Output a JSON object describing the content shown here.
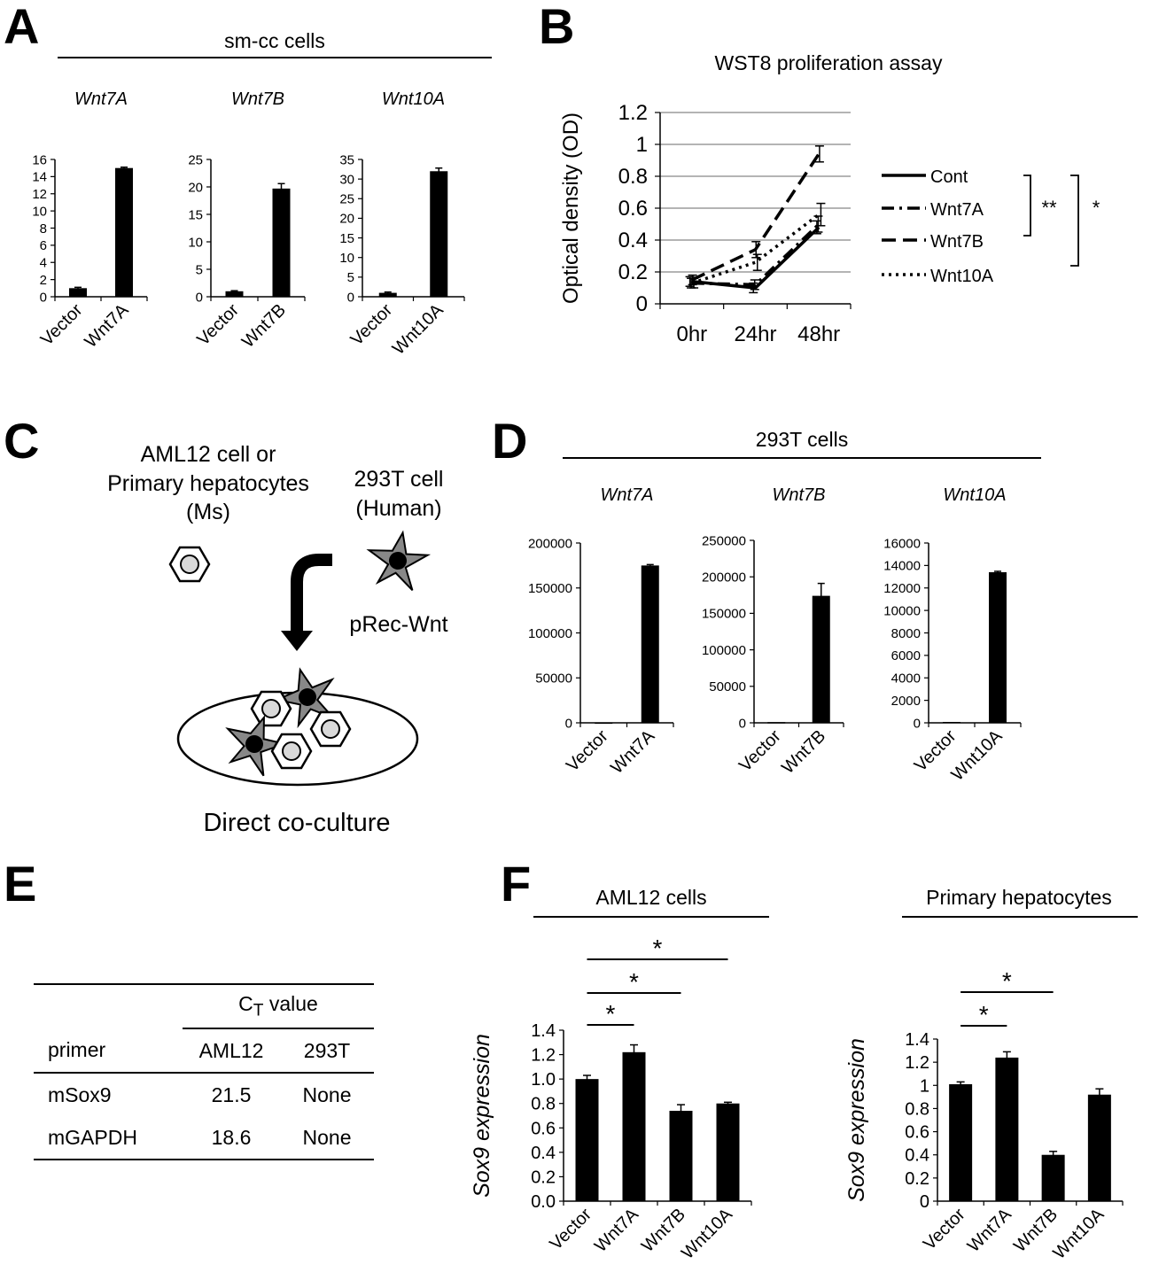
{
  "panels": {
    "A": {
      "label": "A",
      "title": "sm-cc cells"
    },
    "B": {
      "label": "B",
      "title": "WST8 proliferation assay"
    },
    "C": {
      "label": "C",
      "left_cell": "AML12 cell or\nPrimary hepatocytes\n(Ms)",
      "right_cell": "293T cell\n(Human)",
      "vector": "pRec-Wnt",
      "caption": "Direct co-culture"
    },
    "D": {
      "label": "D",
      "title": "293T cells"
    },
    "E": {
      "label": "E"
    },
    "F": {
      "label": "F",
      "title_left": "AML12 cells",
      "title_right": "Primary hepatocytes"
    }
  },
  "table_E": {
    "ct_header": "C",
    "ct_sub": "T",
    "ct_suffix": " value",
    "columns": [
      "primer",
      "AML12",
      "293T"
    ],
    "rows": [
      [
        "mSox9",
        "21.5",
        "None"
      ],
      [
        "mGAPDH",
        "18.6",
        "None"
      ]
    ]
  },
  "chart_data": [
    {
      "id": "A1",
      "type": "bar",
      "title": "Wnt7A",
      "categories": [
        "Vector",
        "Wnt7A"
      ],
      "values": [
        1.0,
        15.0
      ],
      "errors": [
        0.1,
        0.1
      ],
      "ylim": [
        0,
        16
      ],
      "yticks": [
        "0",
        "2",
        "4",
        "6",
        "8",
        "10",
        "12",
        "14",
        "16"
      ]
    },
    {
      "id": "A2",
      "type": "bar",
      "title": "Wnt7B",
      "categories": [
        "Vector",
        "Wnt7B"
      ],
      "values": [
        1.0,
        19.7
      ],
      "errors": [
        0.1,
        0.9
      ],
      "ylim": [
        0,
        25
      ],
      "yticks": [
        "0",
        "5",
        "10",
        "15",
        "20",
        "25"
      ]
    },
    {
      "id": "A3",
      "type": "bar",
      "title": "Wnt10A",
      "categories": [
        "Vector",
        "Wnt10A"
      ],
      "values": [
        1.0,
        32.0
      ],
      "errors": [
        0.2,
        0.8
      ],
      "ylim": [
        0,
        35
      ],
      "yticks": [
        "0",
        "5",
        "10",
        "15",
        "20",
        "25",
        "30",
        "35"
      ]
    },
    {
      "id": "B",
      "type": "line",
      "title": "WST8 proliferation assay",
      "ylabel": "Optical density (OD)",
      "x": [
        "0hr",
        "24hr",
        "48hr"
      ],
      "ylim": [
        0,
        1.2
      ],
      "yticks": [
        "0",
        "0.2",
        "0.4",
        "0.6",
        "0.8",
        "1",
        "1.2"
      ],
      "series": [
        {
          "name": "Cont",
          "values": [
            0.14,
            0.1,
            0.48
          ],
          "errors": [
            0.03,
            0.03,
            0.04
          ],
          "style": "solid"
        },
        {
          "name": "Wnt7A",
          "values": [
            0.13,
            0.12,
            0.5
          ],
          "errors": [
            0.03,
            0.03,
            0.05
          ],
          "style": "dashdot"
        },
        {
          "name": "Wnt7B",
          "values": [
            0.15,
            0.34,
            0.94
          ],
          "errors": [
            0.03,
            0.05,
            0.05
          ],
          "style": "dashed"
        },
        {
          "name": "Wnt10A",
          "values": [
            0.13,
            0.26,
            0.56
          ],
          "errors": [
            0.03,
            0.05,
            0.07
          ],
          "style": "dotted"
        }
      ],
      "significance": [
        "**",
        "*"
      ]
    },
    {
      "id": "D1",
      "type": "bar",
      "title": "Wnt7A",
      "categories": [
        "Vector",
        "Wnt7A"
      ],
      "values": [
        400,
        175000
      ],
      "errors": [
        0,
        1000
      ],
      "ylim": [
        0,
        200000
      ],
      "yticks": [
        "0",
        "50000",
        "100000",
        "150000",
        "200000"
      ]
    },
    {
      "id": "D2",
      "type": "bar",
      "title": "Wnt7B",
      "categories": [
        "Vector",
        "Wnt7B"
      ],
      "values": [
        1000,
        174000
      ],
      "errors": [
        0,
        17000
      ],
      "ylim": [
        0,
        250000
      ],
      "yticks": [
        "0",
        "50000",
        "100000",
        "150000",
        "200000",
        "250000"
      ]
    },
    {
      "id": "D3",
      "type": "bar",
      "title": "Wnt10A",
      "categories": [
        "Vector",
        "Wnt10A"
      ],
      "values": [
        80,
        13400
      ],
      "errors": [
        0,
        80
      ],
      "ylim": [
        0,
        16000
      ],
      "yticks": [
        "0",
        "2000",
        "4000",
        "6000",
        "8000",
        "10000",
        "12000",
        "14000",
        "16000"
      ]
    },
    {
      "id": "F1",
      "type": "bar",
      "title": "AML12 cells",
      "ylabel": "Sox9 expression",
      "categories": [
        "Vector",
        "Wnt7A",
        "Wnt7B",
        "Wnt10A"
      ],
      "values": [
        1.0,
        1.22,
        0.74,
        0.8
      ],
      "errors": [
        0.03,
        0.06,
        0.05,
        0.01
      ],
      "ylim": [
        0,
        1.4
      ],
      "yticks": [
        "0.0",
        "0.2",
        "0.4",
        "0.6",
        "0.8",
        "1.0",
        "1.2",
        "1.4"
      ],
      "significance": [
        "*",
        "*",
        "*"
      ]
    },
    {
      "id": "F2",
      "type": "bar",
      "title": "Primary hepatocytes",
      "ylabel": "Sox9 expression",
      "categories": [
        "Vector",
        "Wnt7A",
        "Wnt7B",
        "Wnt10A"
      ],
      "values": [
        1.01,
        1.24,
        0.4,
        0.92
      ],
      "errors": [
        0.02,
        0.05,
        0.03,
        0.05
      ],
      "ylim": [
        0,
        1.4
      ],
      "yticks": [
        "0",
        "0.2",
        "0.4",
        "0.6",
        "0.8",
        "1",
        "1.2",
        "1.4"
      ],
      "significance": [
        "*",
        "*"
      ]
    }
  ]
}
